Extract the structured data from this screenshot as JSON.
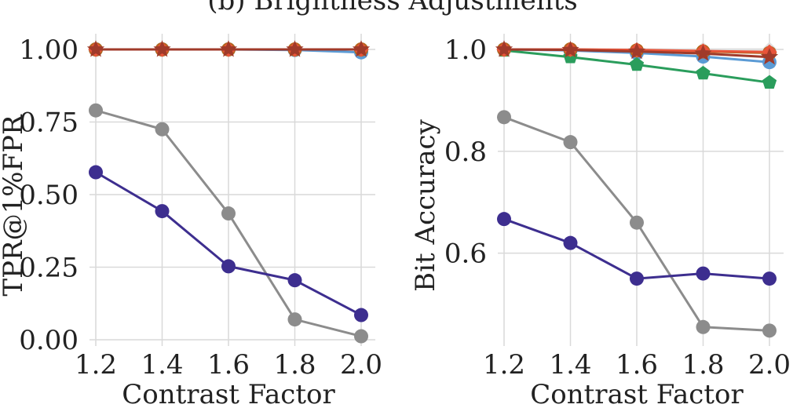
{
  "figure": {
    "title": "(b) Brightness Adjustments"
  },
  "chart_data": [
    {
      "type": "line",
      "xlabel": "Contrast Factor",
      "ylabel": "TPR@1%FPR",
      "x": [
        1.2,
        1.4,
        1.6,
        1.8,
        2.0
      ],
      "x_ticks": [
        "1.2",
        "1.4",
        "1.6",
        "1.8",
        "2.0"
      ],
      "xlim": [
        1.2,
        2.0
      ],
      "ylim": [
        0.0,
        1.0
      ],
      "y_ticks": [
        "0.00",
        "0.25",
        "0.50",
        "0.75",
        "1.00"
      ],
      "y_tick_values": [
        0.0,
        0.25,
        0.5,
        0.75,
        1.0
      ],
      "grid": true,
      "series": [
        {
          "color": "#8c8c8c",
          "marker": "circle",
          "values": [
            0.79,
            0.725,
            0.435,
            0.07,
            0.012
          ]
        },
        {
          "color": "#3d2e8f",
          "marker": "circle",
          "values": [
            0.577,
            0.443,
            0.253,
            0.205,
            0.085
          ]
        },
        {
          "color": "#5b9bd5",
          "marker": "circle",
          "values": [
            1.0,
            1.0,
            1.0,
            0.998,
            0.99
          ]
        },
        {
          "color": "#2a9d5c",
          "marker": "pentagon",
          "values": [
            1.0,
            1.0,
            1.0,
            1.0,
            1.0
          ]
        },
        {
          "color": "#e0e0e0",
          "marker": "diamond",
          "values": [
            1.0,
            1.0,
            1.0,
            1.0,
            1.0
          ]
        },
        {
          "color": "#b5651d",
          "marker": "circle",
          "values": [
            1.0,
            1.0,
            1.0,
            1.0,
            1.0
          ]
        },
        {
          "color": "#e8543a",
          "marker": "diamond",
          "values": [
            1.0,
            1.0,
            1.0,
            1.0,
            1.0
          ]
        },
        {
          "color": "#a03a2a",
          "marker": "star",
          "values": [
            1.0,
            1.0,
            1.0,
            1.0,
            1.0
          ]
        }
      ]
    },
    {
      "type": "line",
      "xlabel": "Contrast Factor",
      "ylabel": "Bit Accuracy",
      "x": [
        1.2,
        1.4,
        1.6,
        1.8,
        2.0
      ],
      "x_ticks": [
        "1.2",
        "1.4",
        "1.6",
        "1.8",
        "2.0"
      ],
      "xlim": [
        1.2,
        2.0
      ],
      "ylim": [
        0.43,
        1.0
      ],
      "y_ticks": [
        "0.6",
        "0.8",
        "1.0"
      ],
      "y_tick_values": [
        0.6,
        0.8,
        1.0
      ],
      "grid": true,
      "series": [
        {
          "color": "#8c8c8c",
          "marker": "circle",
          "values": [
            0.867,
            0.818,
            0.66,
            0.455,
            0.448
          ]
        },
        {
          "color": "#3d2e8f",
          "marker": "circle",
          "values": [
            0.667,
            0.62,
            0.55,
            0.56,
            0.55
          ]
        },
        {
          "color": "#5b9bd5",
          "marker": "circle",
          "values": [
            1.0,
            0.998,
            0.993,
            0.986,
            0.975
          ]
        },
        {
          "color": "#2a9d5c",
          "marker": "pentagon",
          "values": [
            0.998,
            0.985,
            0.97,
            0.953,
            0.935
          ]
        },
        {
          "color": "#e0e0e0",
          "marker": "diamond",
          "values": [
            1.0,
            1.0,
            1.0,
            1.0,
            1.0
          ]
        },
        {
          "color": "#b5651d",
          "marker": "circle",
          "values": [
            1.0,
            1.0,
            0.998,
            0.996,
            0.993
          ]
        },
        {
          "color": "#e8543a",
          "marker": "diamond",
          "values": [
            1.0,
            1.0,
            0.999,
            0.997,
            0.995
          ]
        },
        {
          "color": "#a03a2a",
          "marker": "star",
          "values": [
            1.0,
            0.999,
            0.996,
            0.992,
            0.985
          ]
        }
      ]
    }
  ]
}
